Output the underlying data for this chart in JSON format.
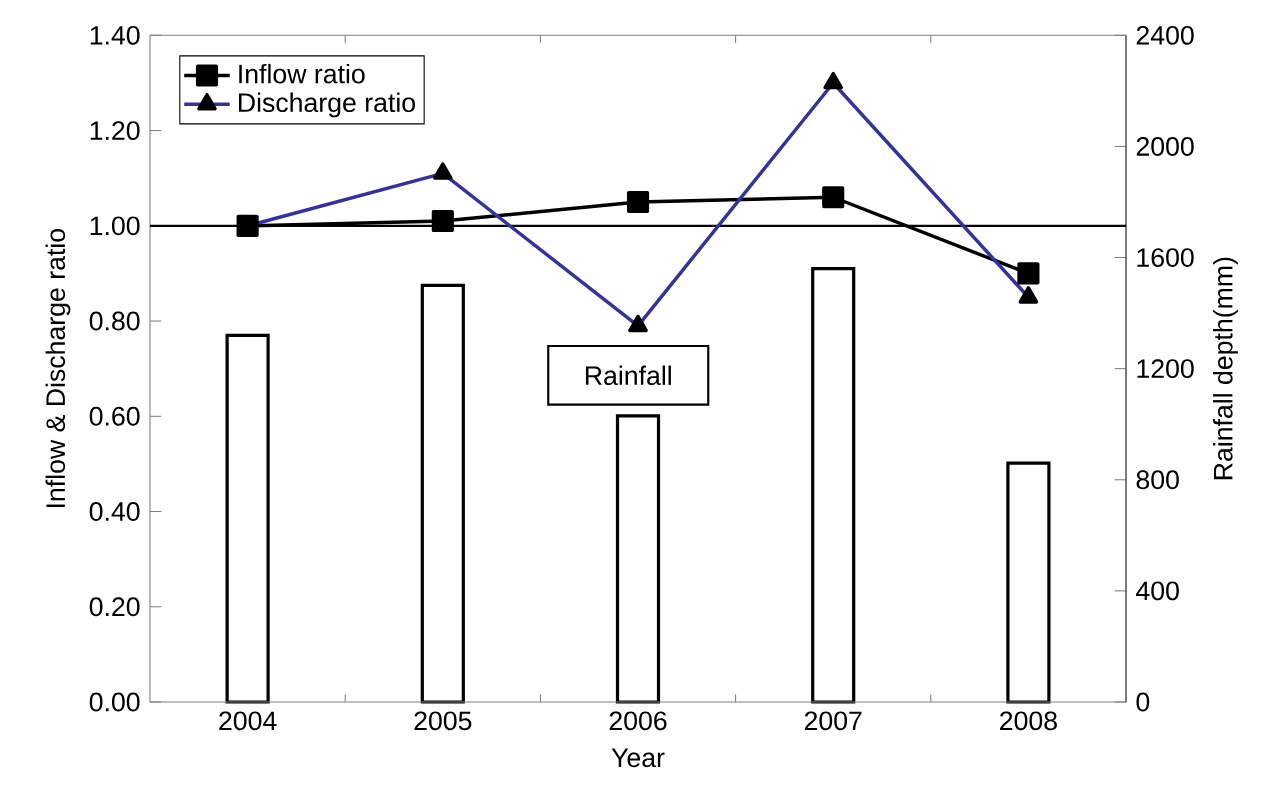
{
  "chart_data": {
    "type": "line",
    "categories": [
      "2004",
      "2005",
      "2006",
      "2007",
      "2008"
    ],
    "xlabel": "Year",
    "ylabel": "Inflow & Discharge ratio",
    "y2label": "Rainfall depth(mm)",
    "ylim": [
      0,
      1.4
    ],
    "yticks": [
      {
        "value": 0,
        "label": "0.00"
      },
      {
        "value": 0.2,
        "label": "0.20"
      },
      {
        "value": 0.4,
        "label": "0.40"
      },
      {
        "value": 0.6,
        "label": "0.60"
      },
      {
        "value": 0.8,
        "label": "0.80"
      },
      {
        "value": 1.0,
        "label": "1.00"
      },
      {
        "value": 1.2,
        "label": "1.20"
      },
      {
        "value": 1.4,
        "label": "1.40"
      }
    ],
    "y2lim": [
      0,
      2400
    ],
    "y2ticks": [
      0,
      400,
      800,
      1200,
      1600,
      2000,
      2400
    ],
    "series": [
      {
        "type": "bar",
        "axis": "y2",
        "color": "#ffffff",
        "values": [
          1320,
          1500,
          1030,
          1560,
          860
        ]
      },
      {
        "name": "Inflow ratio",
        "color": "#000000",
        "marker": "square",
        "line_style": "solid",
        "values": [
          1.0,
          1.01,
          1.05,
          1.06,
          0.9
        ]
      },
      {
        "name": "Discharge ratio",
        "color": "#333399",
        "marker": "triangle",
        "line_style": "solid",
        "values": [
          1.0,
          1.11,
          0.79,
          1.3,
          0.85
        ]
      }
    ],
    "ref_lines": [
      {
        "axis": "y",
        "value": 1.0,
        "color": "#000000"
      }
    ],
    "annotations": [
      "Rainfall"
    ],
    "legend": "top left"
  }
}
